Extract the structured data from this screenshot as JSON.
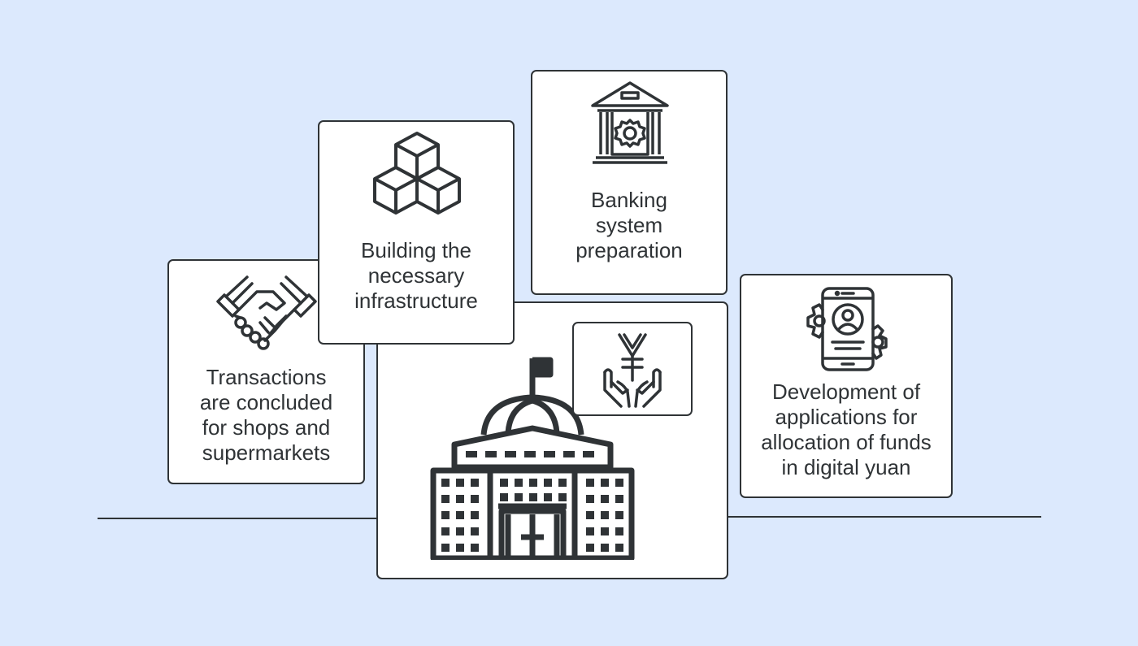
{
  "theme": {
    "background": "#dce9fd",
    "card_background": "#ffffff",
    "stroke": "#2f3336",
    "text": "#2f3336"
  },
  "cards": {
    "transactions": {
      "label": "Transactions\nare concluded\nfor shops and\nsupermarkets",
      "icon": "handshake-icon"
    },
    "infrastructure": {
      "label": "Building the\nnecessary\ninfrastructure",
      "icon": "cubes-icon"
    },
    "banking": {
      "label": "Banking\nsystem\npreparation",
      "icon": "bank-gear-icon"
    },
    "applications": {
      "label": "Development of\napplications for\nallocation of funds\nin digital yuan",
      "icon": "smartphone-gears-icon"
    },
    "central": {
      "icon": "government-building-icon"
    },
    "yuan": {
      "icon": "yuan-hands-icon"
    }
  }
}
